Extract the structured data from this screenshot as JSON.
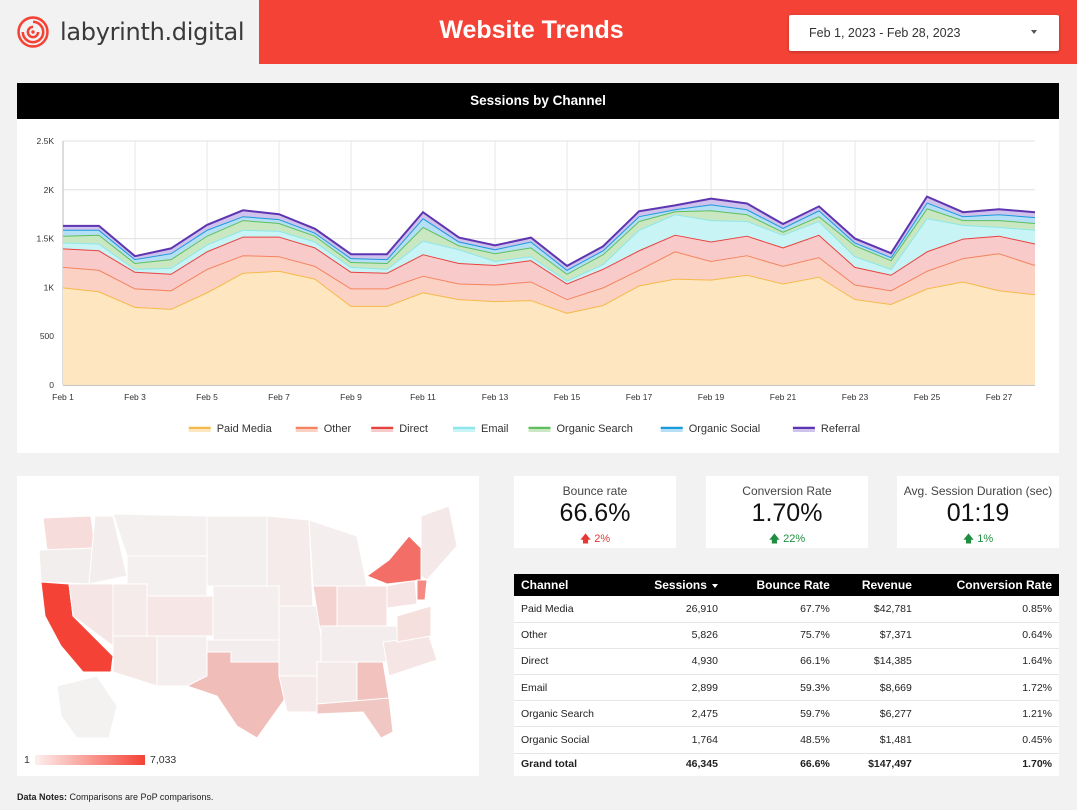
{
  "brand": {
    "name": "labyrinth.digital",
    "accent": "#f44336"
  },
  "header": {
    "title": "Website Trends",
    "date_range": "Feb 1, 2023 - Feb 28, 2023"
  },
  "chart_data": {
    "type": "area",
    "title": "Sessions by Channel",
    "stacked": true,
    "x": [
      "Feb 1",
      "Feb 2",
      "Feb 3",
      "Feb 4",
      "Feb 5",
      "Feb 6",
      "Feb 7",
      "Feb 8",
      "Feb 9",
      "Feb 10",
      "Feb 11",
      "Feb 12",
      "Feb 13",
      "Feb 14",
      "Feb 15",
      "Feb 16",
      "Feb 17",
      "Feb 18",
      "Feb 19",
      "Feb 20",
      "Feb 21",
      "Feb 22",
      "Feb 23",
      "Feb 24",
      "Feb 25",
      "Feb 26",
      "Feb 27",
      "Feb 28"
    ],
    "x_tick_labels": [
      "Feb 1",
      "Feb 3",
      "Feb 5",
      "Feb 7",
      "Feb 9",
      "Feb 11",
      "Feb 13",
      "Feb 15",
      "Feb 17",
      "Feb 19",
      "Feb 21",
      "Feb 23",
      "Feb 25",
      "Feb 27"
    ],
    "y_ticks": [
      "0",
      "500",
      "1K",
      "1.5K",
      "2K",
      "2.5K"
    ],
    "ylim": [
      0,
      2500
    ],
    "grid": true,
    "legend_position": "bottom",
    "series": [
      {
        "name": "Paid Media",
        "color": "#f6b94b",
        "fill": "#fde6c0",
        "values": [
          1000,
          960,
          800,
          780,
          950,
          1150,
          1170,
          1090,
          810,
          810,
          950,
          880,
          860,
          870,
          740,
          820,
          1020,
          1090,
          1080,
          1130,
          1040,
          1110,
          880,
          830,
          990,
          1060,
          970,
          930
        ]
      },
      {
        "name": "Other",
        "color": "#f4845f",
        "fill": "#fbd1c3",
        "values": [
          210,
          220,
          190,
          190,
          240,
          180,
          150,
          130,
          180,
          180,
          170,
          160,
          170,
          190,
          140,
          180,
          160,
          280,
          190,
          200,
          180,
          200,
          150,
          140,
          180,
          240,
          380,
          300
        ]
      },
      {
        "name": "Direct",
        "color": "#e8423f",
        "fill": "#f9caca",
        "values": [
          190,
          200,
          170,
          170,
          180,
          190,
          200,
          190,
          170,
          160,
          220,
          210,
          200,
          220,
          160,
          190,
          200,
          170,
          200,
          200,
          190,
          230,
          180,
          160,
          200,
          200,
          180,
          220
        ]
      },
      {
        "name": "Email",
        "color": "#8ee6ea",
        "fill": "#c8f4f5",
        "values": [
          60,
          70,
          30,
          60,
          70,
          70,
          60,
          60,
          50,
          40,
          140,
          140,
          40,
          40,
          30,
          50,
          210,
          210,
          220,
          150,
          130,
          140,
          110,
          60,
          340,
          140,
          90,
          140
        ]
      },
      {
        "name": "Organic Search",
        "color": "#5ebf5e",
        "fill": "#c9e8c2",
        "values": [
          70,
          90,
          60,
          90,
          90,
          100,
          80,
          60,
          50,
          60,
          140,
          40,
          80,
          90,
          70,
          100,
          90,
          30,
          100,
          70,
          30,
          50,
          110,
          90,
          100,
          50,
          70,
          70
        ]
      },
      {
        "name": "Organic Social",
        "color": "#1a9bdc",
        "fill": "#b5dff4",
        "values": [
          60,
          50,
          40,
          60,
          60,
          40,
          40,
          30,
          40,
          40,
          90,
          40,
          40,
          60,
          40,
          40,
          50,
          20,
          60,
          50,
          40,
          60,
          30,
          30,
          60,
          40,
          60,
          60
        ]
      },
      {
        "name": "Referral",
        "color": "#5e35b1",
        "fill": "#cfc2ec",
        "values": [
          40,
          40,
          30,
          50,
          50,
          60,
          50,
          40,
          40,
          50,
          60,
          40,
          40,
          40,
          40,
          40,
          50,
          40,
          60,
          60,
          40,
          40,
          40,
          40,
          60,
          40,
          50,
          50
        ]
      }
    ]
  },
  "map": {
    "legend_min": "1",
    "legend_max": "7,033",
    "scale_low": "#fdf0ef",
    "scale_high": "#f44336"
  },
  "scorecards": [
    {
      "label": "Bounce rate",
      "value": "66.6%",
      "delta": "2%",
      "direction": "up",
      "sentiment": "bad"
    },
    {
      "label": "Conversion Rate",
      "value": "1.70%",
      "delta": "22%",
      "direction": "up",
      "sentiment": "good"
    },
    {
      "label": "Avg. Session Duration (sec)",
      "value": "01:19",
      "delta": "1%",
      "direction": "up",
      "sentiment": "good"
    }
  ],
  "table": {
    "headers": [
      "Channel",
      "Sessions",
      "Bounce Rate",
      "Revenue",
      "Conversion Rate"
    ],
    "rows": [
      [
        "Paid Media",
        "26,910",
        "67.7%",
        "$42,781",
        "0.85%"
      ],
      [
        "Other",
        "5,826",
        "75.7%",
        "$7,371",
        "0.64%"
      ],
      [
        "Direct",
        "4,930",
        "66.1%",
        "$14,385",
        "1.64%"
      ],
      [
        "Email",
        "2,899",
        "59.3%",
        "$8,669",
        "1.72%"
      ],
      [
        "Organic Search",
        "2,475",
        "59.7%",
        "$6,277",
        "1.21%"
      ],
      [
        "Organic Social",
        "1,764",
        "48.5%",
        "$1,481",
        "0.45%"
      ]
    ],
    "total": [
      "Grand total",
      "46,345",
      "66.6%",
      "$147,497",
      "1.70%"
    ]
  },
  "footer": {
    "notes_label": "Data Notes:",
    "notes_text": "Comparisons are PoP comparisons."
  }
}
